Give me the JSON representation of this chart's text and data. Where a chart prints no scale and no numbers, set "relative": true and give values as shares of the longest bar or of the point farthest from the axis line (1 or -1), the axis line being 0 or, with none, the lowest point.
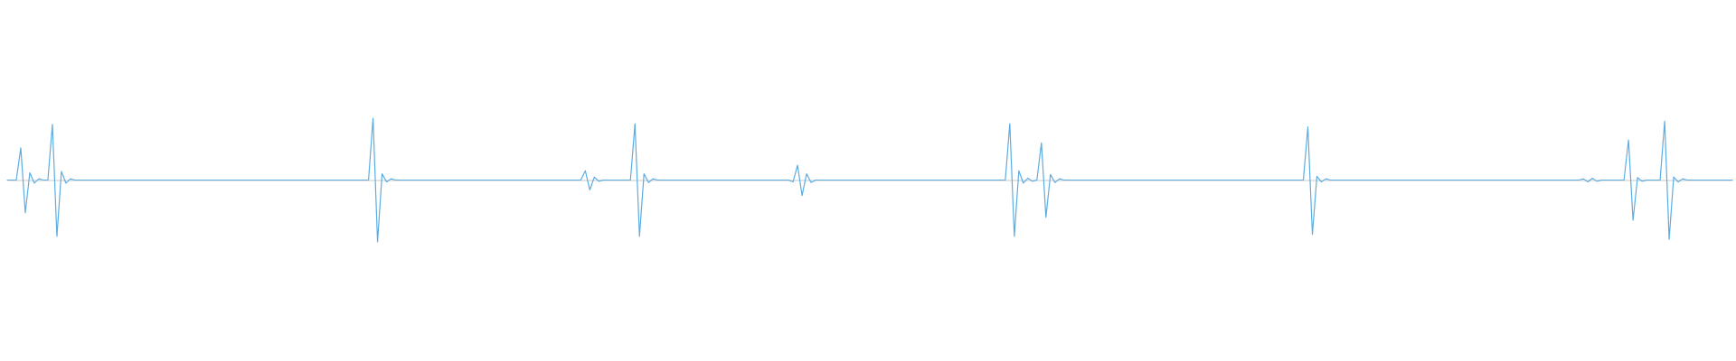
{
  "chart_data": {
    "type": "line",
    "relative": true,
    "color": "#5dade2",
    "categories": [
      null,
      null,
      null,
      null,
      null,
      null,
      null,
      null,
      null,
      null,
      null,
      null,
      null,
      null,
      null,
      null,
      null,
      null,
      null,
      null,
      null,
      null,
      null,
      null,
      null,
      null,
      null,
      null,
      null,
      null,
      null,
      null,
      null,
      null,
      null,
      null,
      null,
      null,
      null,
      null,
      null,
      null,
      null,
      null,
      null,
      null,
      null,
      null,
      null,
      null,
      null,
      null,
      null,
      null,
      null,
      null,
      null,
      null,
      null,
      null,
      null,
      null,
      null,
      null,
      null,
      null,
      null,
      null,
      null,
      null,
      null,
      null,
      null,
      null,
      null,
      null,
      null,
      null,
      null,
      null,
      null,
      null,
      null,
      null,
      null,
      null,
      null,
      null,
      null,
      null,
      null,
      null,
      null,
      null,
      null,
      null,
      null,
      null,
      null,
      null,
      null,
      null,
      null,
      null,
      null,
      null,
      null,
      null,
      null,
      null,
      null,
      null,
      null,
      null,
      null,
      null,
      null,
      null,
      null,
      null,
      null,
      null,
      null,
      null,
      null,
      null,
      null,
      null,
      null,
      null,
      null,
      null,
      null,
      null,
      null,
      null,
      null,
      null,
      null,
      null,
      null,
      null,
      null,
      null,
      null,
      null,
      null,
      null,
      null,
      null,
      null,
      null,
      null,
      null,
      null,
      null,
      null,
      null,
      null,
      null,
      null,
      null,
      null,
      null,
      null,
      null,
      null,
      null,
      null,
      null,
      null,
      null,
      null,
      null,
      null,
      null,
      null,
      null,
      null,
      null,
      null,
      null,
      null,
      null,
      null,
      null,
      null,
      null,
      null,
      null,
      null,
      null,
      null,
      null,
      null,
      null,
      null,
      null,
      null,
      null,
      null,
      null,
      null,
      null,
      null,
      null,
      null,
      null,
      null,
      null,
      null,
      null,
      null,
      null,
      null,
      null,
      null,
      null,
      null,
      null,
      null,
      null,
      null,
      null,
      null,
      null,
      null,
      null,
      null,
      null,
      null,
      null,
      null,
      null,
      null,
      null,
      null,
      null,
      null,
      null,
      null,
      null,
      null,
      null,
      null,
      null,
      null,
      null,
      null,
      null,
      null,
      null,
      null,
      null,
      null,
      null,
      null,
      null,
      null,
      null,
      null,
      null,
      null,
      null,
      null,
      null,
      null,
      null,
      null,
      null,
      null,
      null,
      null,
      null,
      null,
      null,
      null,
      null,
      null,
      null,
      null,
      null,
      null,
      null,
      null,
      null,
      null,
      null,
      null,
      null,
      null,
      null,
      null,
      null,
      null,
      null,
      null,
      null,
      null,
      null,
      null,
      null,
      null,
      null,
      null,
      null,
      null,
      null,
      null,
      null,
      null,
      null,
      null,
      null,
      null,
      null,
      null,
      null,
      null,
      null,
      null,
      null,
      null,
      null,
      null,
      null,
      null,
      null,
      null,
      null,
      null,
      null,
      null,
      null,
      null,
      null,
      null,
      null,
      null,
      null,
      null,
      null,
      null,
      null,
      null,
      null,
      null,
      null,
      null,
      null,
      null,
      null,
      null,
      null,
      null,
      null,
      null,
      null,
      null,
      null,
      null,
      null,
      null,
      null,
      null,
      null,
      null,
      null,
      null,
      null,
      null,
      null,
      null,
      null,
      null,
      null,
      null,
      null,
      null,
      null,
      null,
      null,
      null
    ],
    "values": [
      0,
      0,
      0,
      0.52,
      -0.53,
      0.12,
      -0.05,
      0.02,
      0,
      0,
      0.9,
      -0.91,
      0.14,
      -0.05,
      0.02,
      0,
      0,
      0,
      0,
      0,
      0,
      0,
      0,
      0,
      0,
      0,
      0,
      0,
      0,
      0,
      0,
      0,
      0,
      0,
      0,
      0,
      0,
      0,
      0,
      0,
      0,
      0,
      0,
      0,
      0,
      0,
      0,
      0,
      0,
      0,
      0,
      0,
      0,
      0,
      0,
      0,
      0,
      0,
      0,
      0,
      0,
      0,
      0,
      0,
      0,
      0,
      0,
      0,
      0,
      0,
      0,
      0,
      0,
      0,
      0,
      0,
      0,
      0,
      0,
      0,
      0,
      1,
      -1,
      0.1,
      -0.03,
      0.02,
      0,
      0,
      0,
      0,
      0,
      0,
      0,
      0,
      0,
      0,
      0,
      0,
      0,
      0,
      0,
      0,
      0,
      0,
      0,
      0,
      0,
      0,
      0,
      0,
      0,
      0,
      0,
      0,
      0,
      0,
      0,
      0,
      0,
      0,
      0,
      0,
      0,
      0,
      0,
      0,
      0,
      0,
      0.15,
      -0.16,
      0.05,
      -0.02,
      0,
      0,
      0,
      0,
      0,
      0,
      0,
      0.91,
      -0.91,
      0.1,
      -0.04,
      0.02,
      0,
      0,
      0,
      0,
      0,
      0,
      0,
      0,
      0,
      0,
      0,
      0,
      0,
      0,
      0,
      0,
      0,
      0,
      0,
      0,
      0,
      0,
      0,
      0,
      0,
      0,
      0,
      0,
      0,
      0,
      -0.03,
      0.24,
      -0.25,
      0.1,
      -0.04,
      0,
      0,
      0,
      0,
      0,
      0,
      0,
      0,
      0,
      0,
      0,
      0,
      0,
      0,
      0,
      0,
      0,
      0,
      0,
      0,
      0,
      0,
      0,
      0,
      0,
      0,
      0,
      0,
      0,
      0,
      0,
      0,
      0,
      0,
      0,
      0,
      0,
      0,
      0,
      0,
      0,
      0,
      0,
      0.91,
      -0.91,
      0.15,
      -0.05,
      0.03,
      -0.02,
      0,
      0.6,
      -0.6,
      0.09,
      -0.04,
      0.02,
      0,
      0,
      0,
      0,
      0,
      0,
      0,
      0,
      0,
      0,
      0,
      0,
      0,
      0,
      0,
      0,
      0,
      0,
      0,
      0,
      0,
      0,
      0,
      0,
      0,
      0,
      0,
      0,
      0,
      0,
      0,
      0,
      0,
      0,
      0,
      0,
      0,
      0,
      0,
      0,
      0,
      0,
      0,
      0,
      0,
      0,
      0,
      0,
      0,
      0,
      0,
      0,
      0,
      0,
      0.86,
      -0.88,
      0.06,
      -0.03,
      0.02,
      0,
      0,
      0,
      0,
      0,
      0,
      0,
      0,
      0,
      0,
      0,
      0,
      0,
      0,
      0,
      0,
      0,
      0,
      0,
      0,
      0,
      0,
      0,
      0,
      0,
      0,
      0,
      0,
      0,
      0,
      0,
      0,
      0,
      0,
      0,
      0,
      0,
      0,
      0,
      0,
      0,
      0,
      0,
      0,
      0,
      0,
      0,
      0,
      0,
      0,
      0,
      0,
      0,
      0,
      0,
      0,
      0.02,
      -0.03,
      0.03,
      -0.02,
      0,
      0,
      0,
      0,
      0,
      0,
      0.65,
      -0.65,
      0.04,
      -0.02,
      0,
      0,
      0,
      0,
      0.95,
      -0.96,
      0.05,
      -0.03,
      0.02,
      0,
      0,
      0,
      0,
      0,
      0,
      0,
      0,
      0,
      0,
      0
    ]
  }
}
